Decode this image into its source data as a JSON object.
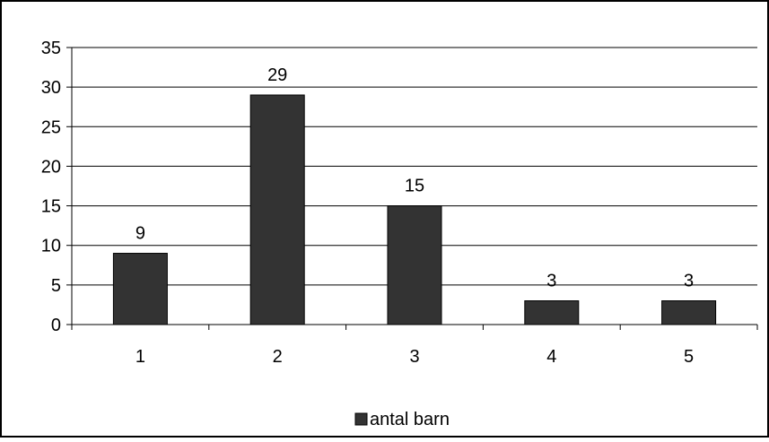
{
  "chart_data": {
    "type": "bar",
    "categories": [
      "1",
      "2",
      "3",
      "4",
      "5"
    ],
    "series": [
      {
        "name": "antal barn",
        "values": [
          9,
          29,
          15,
          3,
          3
        ]
      }
    ],
    "data_labels": [
      "9",
      "29",
      "15",
      "3",
      "3"
    ],
    "ylim": [
      0,
      35
    ],
    "yticks": [
      0,
      5,
      10,
      15,
      20,
      25,
      30,
      35
    ],
    "ytick_labels": [
      "0",
      "5",
      "10",
      "15",
      "20",
      "25",
      "30",
      "35"
    ],
    "grid": true,
    "legend": {
      "position": "bottom",
      "label": "antal barn"
    },
    "title": "",
    "xlabel": "",
    "ylabel": "",
    "colors": {
      "bar": "#333333",
      "bar_stroke": "#000000",
      "grid": "#000000",
      "frame": "#000000",
      "background": "#ffffff"
    }
  }
}
